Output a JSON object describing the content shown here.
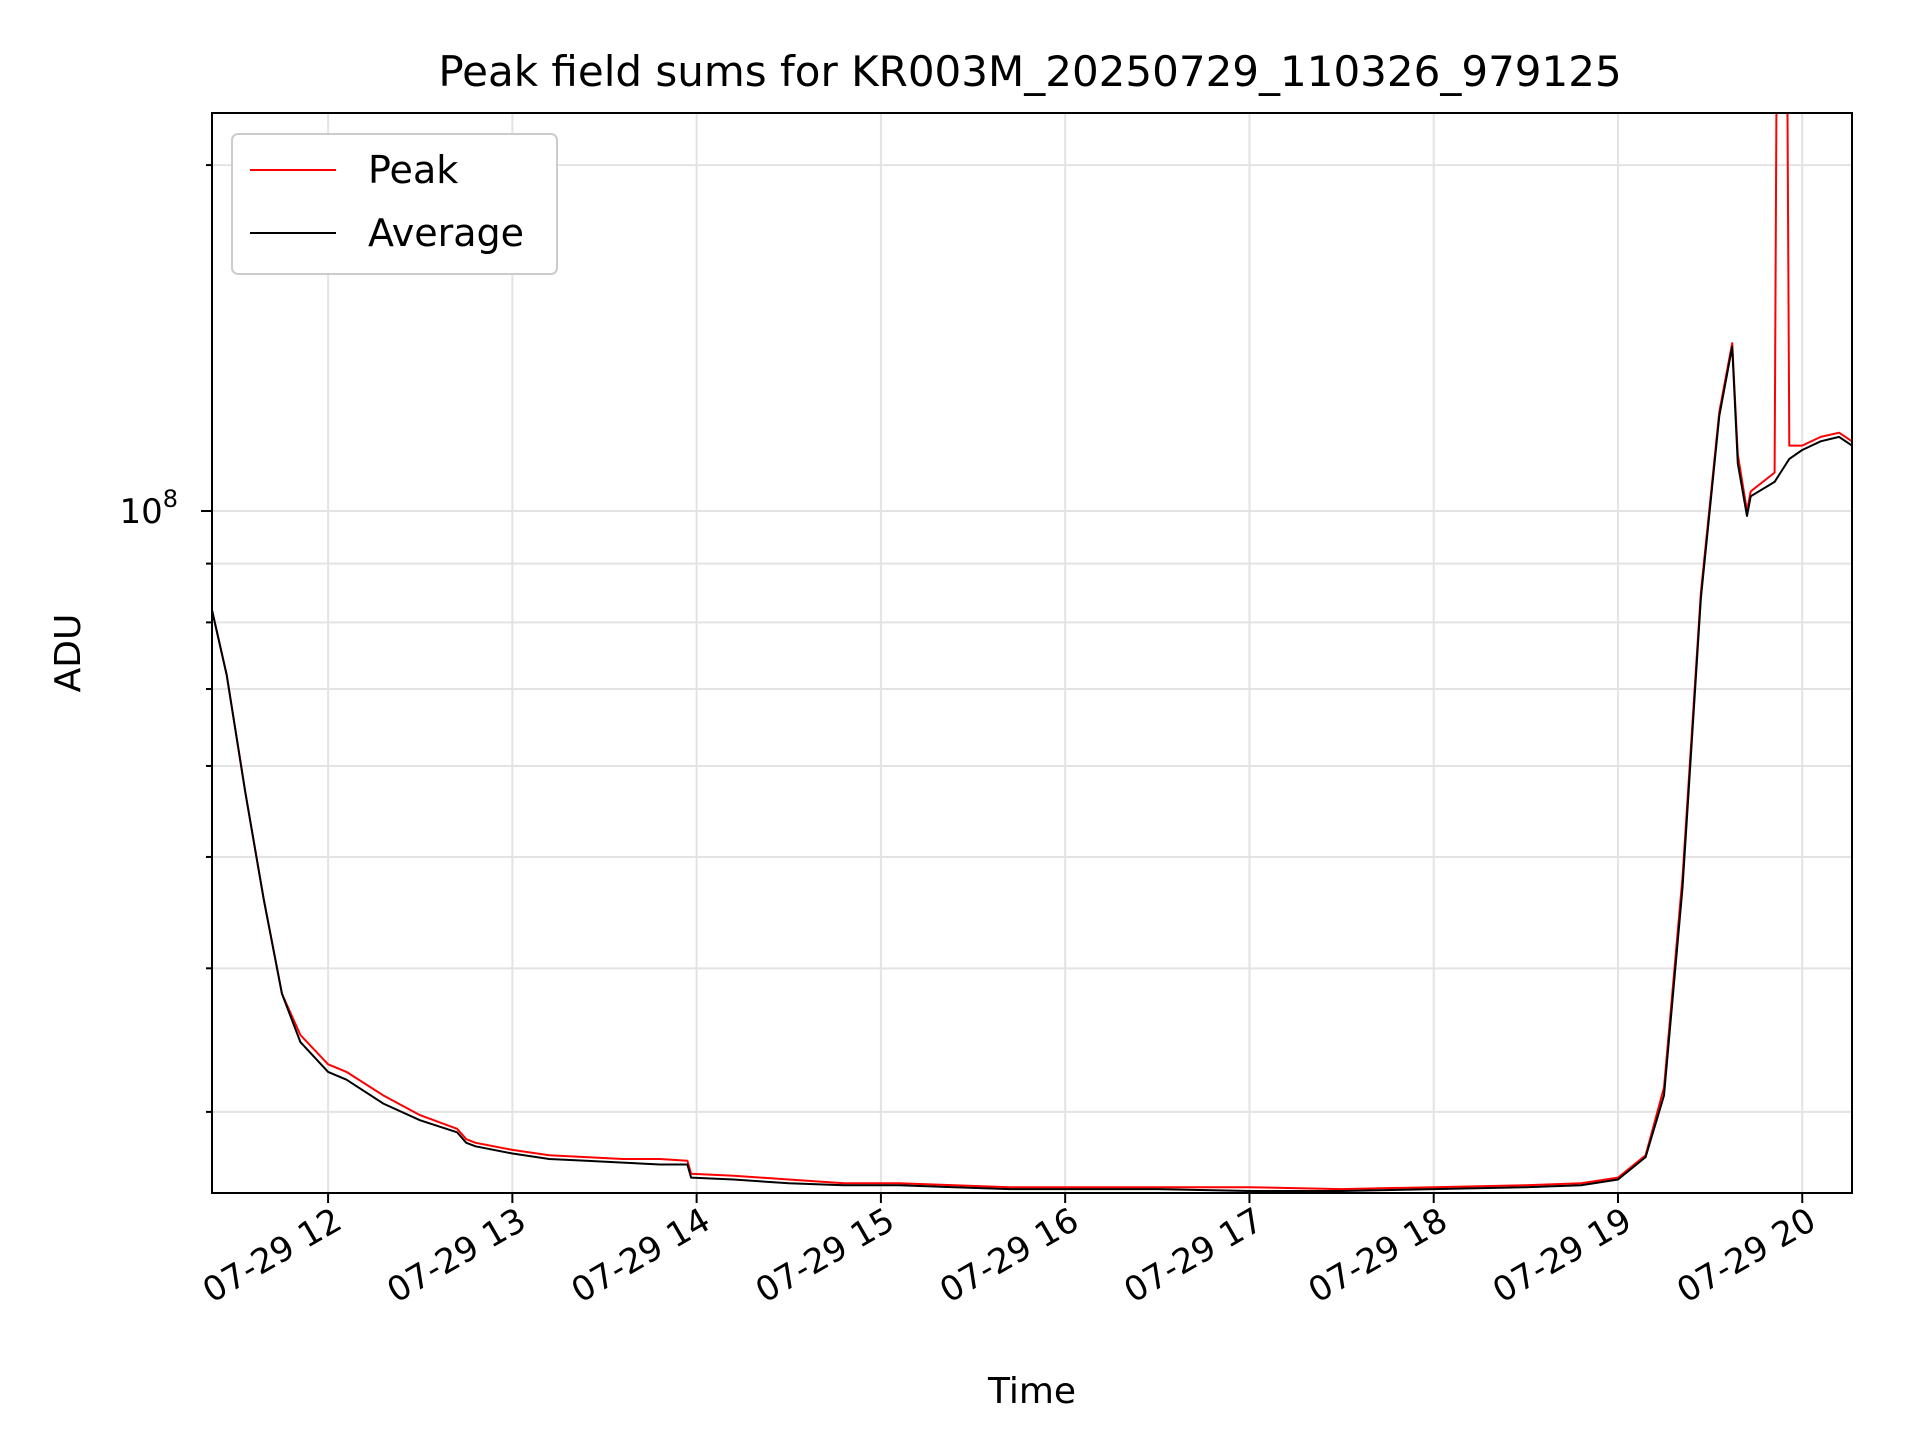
{
  "chart_data": {
    "type": "line",
    "title": "Peak field sums for KR003M_20250729_110326_979125",
    "xlabel": "Time",
    "ylabel": "ADU",
    "yscale": "log",
    "grid": true,
    "legend_position": "top-left",
    "x_tick_labels": [
      "07-29 12",
      "07-29 13",
      "07-29 14",
      "07-29 15",
      "07-29 16",
      "07-29 17",
      "07-29 18",
      "07-29 19",
      "07-29 20"
    ],
    "x_ticks_hours": [
      12,
      13,
      14,
      15,
      16,
      17,
      18,
      19,
      20
    ],
    "xlim_hours": [
      11.37,
      20.27
    ],
    "ylim": [
      25500000,
      222000000
    ],
    "y_major_tick_label_base": "10",
    "y_major_tick_label_exp": "8",
    "y_major_tick_value": 100000000,
    "y_minor_ticks": [
      30000000,
      40000000,
      50000000,
      60000000,
      70000000,
      80000000,
      90000000,
      200000000
    ],
    "series": [
      {
        "name": "Peak",
        "color": "#ff0000",
        "x_hours": [
          11.37,
          11.45,
          11.55,
          11.65,
          11.75,
          11.85,
          12.0,
          12.1,
          12.3,
          12.5,
          12.7,
          12.75,
          12.8,
          13.0,
          13.2,
          13.4,
          13.6,
          13.8,
          13.95,
          13.97,
          14.2,
          14.5,
          14.8,
          15.1,
          15.4,
          15.7,
          16.0,
          16.5,
          17.0,
          17.5,
          18.0,
          18.5,
          18.8,
          19.0,
          19.15,
          19.25,
          19.35,
          19.45,
          19.55,
          19.62,
          19.65,
          19.7,
          19.72,
          19.85,
          19.86,
          19.92,
          19.93,
          20.0,
          20.1,
          20.2,
          20.27
        ],
        "y": [
          82000000,
          72000000,
          57000000,
          46000000,
          38000000,
          35000000,
          33000000,
          32500000,
          31000000,
          29800000,
          29000000,
          28400000,
          28200000,
          27800000,
          27500000,
          27400000,
          27300000,
          27300000,
          27200000,
          26500000,
          26400000,
          26200000,
          26000000,
          26000000,
          25900000,
          25800000,
          25800000,
          25800000,
          25800000,
          25700000,
          25800000,
          25900000,
          26000000,
          26300000,
          27500000,
          31500000,
          48000000,
          85000000,
          122000000,
          140000000,
          112000000,
          100000000,
          104000000,
          108000000,
          222000000,
          222000000,
          114000000,
          114000000,
          116000000,
          117000000,
          115000000
        ]
      },
      {
        "name": "Average",
        "color": "#000000",
        "x_hours": [
          11.37,
          11.45,
          11.55,
          11.65,
          11.75,
          11.85,
          12.0,
          12.1,
          12.3,
          12.5,
          12.7,
          12.75,
          12.8,
          13.0,
          13.2,
          13.4,
          13.6,
          13.8,
          13.95,
          13.97,
          14.2,
          14.5,
          14.8,
          15.1,
          15.4,
          15.7,
          16.0,
          16.5,
          17.0,
          17.5,
          18.0,
          18.5,
          18.8,
          19.0,
          19.15,
          19.25,
          19.35,
          19.45,
          19.55,
          19.62,
          19.65,
          19.7,
          19.72,
          19.85,
          19.93,
          20.0,
          20.1,
          20.2,
          20.27
        ],
        "y": [
          82000000,
          72000000,
          57000000,
          46000000,
          38000000,
          34500000,
          32500000,
          32000000,
          30500000,
          29500000,
          28800000,
          28200000,
          28000000,
          27600000,
          27300000,
          27200000,
          27100000,
          27000000,
          27000000,
          26300000,
          26200000,
          26000000,
          25900000,
          25900000,
          25800000,
          25700000,
          25700000,
          25700000,
          25600000,
          25600000,
          25700000,
          25800000,
          25900000,
          26200000,
          27400000,
          31000000,
          47000000,
          84000000,
          121000000,
          139000000,
          110000000,
          99000000,
          103000000,
          106000000,
          111000000,
          113000000,
          115000000,
          116000000,
          114000000
        ]
      }
    ]
  }
}
